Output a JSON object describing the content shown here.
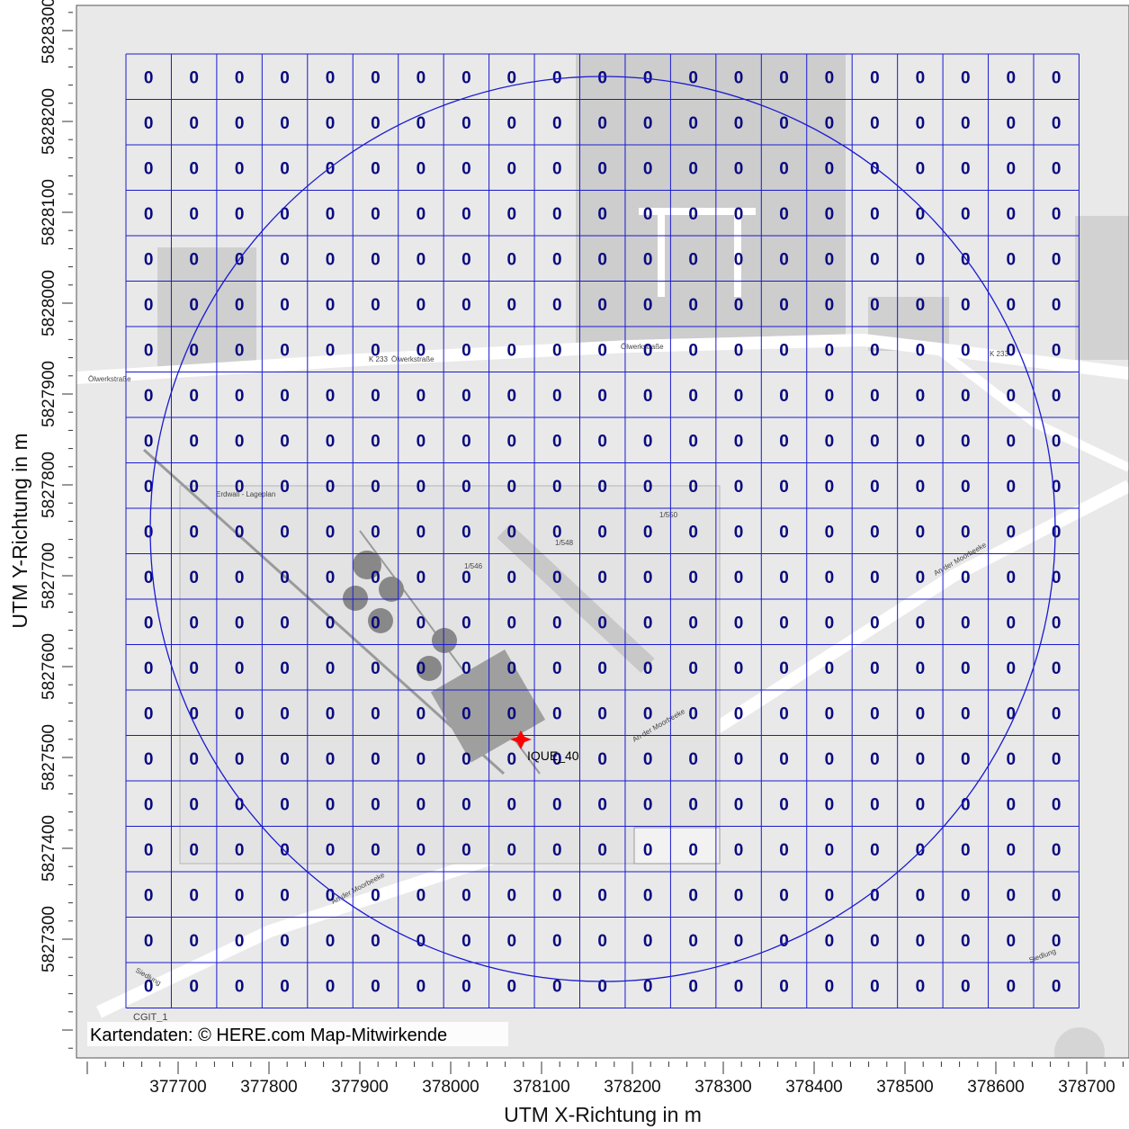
{
  "map": {
    "x_axis_title": "UTM X-Richtung in m",
    "y_axis_title": "UTM Y-Richtung in m",
    "x_ticks": [
      "377700",
      "377800",
      "377900",
      "378000",
      "378100",
      "378200",
      "378300",
      "378400",
      "378500",
      "378600",
      "378700"
    ],
    "y_ticks": [
      "5828300",
      "5828200",
      "5828100",
      "5828000",
      "5827900",
      "5827800",
      "5827700",
      "5827600",
      "5827500",
      "5827400",
      "5827300"
    ],
    "credit": "Kartendaten: © HERE.com Map-Mitwirkende",
    "source_label": "IQUE_40",
    "corner_label": "CGIT_1",
    "road_labels": [
      "Ölwerkstraße",
      "K 233",
      "Ölwerkstraße",
      "Ölwerkstraße",
      "K 233",
      "An der Moorbeeke",
      "An der Moorbeeke",
      "An der Moorbeeke",
      "Siedlung",
      "Siedlung",
      "1/546",
      "1/548",
      "1/550",
      "Erdwall - Lageplan"
    ],
    "grid": {
      "rows": 21,
      "cols": 21,
      "values": [
        [
          0,
          0,
          0,
          0,
          0,
          0,
          0,
          0,
          0,
          0,
          0,
          0,
          0,
          0,
          0,
          0,
          0,
          0,
          0,
          0,
          0
        ],
        [
          0,
          0,
          0,
          0,
          0,
          0,
          0,
          0,
          0,
          0,
          0,
          0,
          0,
          0,
          0,
          0,
          0,
          0,
          0,
          0,
          0
        ],
        [
          0,
          0,
          0,
          0,
          0,
          0,
          0,
          0,
          0,
          0,
          0,
          0,
          0,
          0,
          0,
          0,
          0,
          0,
          0,
          0,
          0
        ],
        [
          0,
          0,
          0,
          0,
          0,
          0,
          0,
          0,
          0,
          0,
          0,
          0,
          0,
          0,
          0,
          0,
          0,
          0,
          0,
          0,
          0
        ],
        [
          0,
          0,
          0,
          0,
          0,
          0,
          0,
          0,
          0,
          0,
          0,
          0,
          0,
          0,
          0,
          0,
          0,
          0,
          0,
          0,
          0
        ],
        [
          0,
          0,
          0,
          0,
          0,
          0,
          0,
          0,
          0,
          0,
          0,
          0,
          0,
          0,
          0,
          0,
          0,
          0,
          0,
          0,
          0
        ],
        [
          0,
          0,
          0,
          0,
          0,
          0,
          0,
          0,
          0,
          0,
          0,
          0,
          0,
          0,
          0,
          0,
          0,
          0,
          0,
          0,
          0
        ],
        [
          0,
          0,
          0,
          0,
          0,
          0,
          0,
          0,
          0,
          0,
          0,
          0,
          0,
          0,
          0,
          0,
          0,
          0,
          0,
          0,
          0
        ],
        [
          0,
          0,
          0,
          0,
          0,
          0,
          0,
          0,
          0,
          0,
          0,
          0,
          0,
          0,
          0,
          0,
          0,
          0,
          0,
          0,
          0
        ],
        [
          0,
          0,
          0,
          0,
          0,
          0,
          0,
          0,
          0,
          0,
          0,
          0,
          0,
          0,
          0,
          0,
          0,
          0,
          0,
          0,
          0
        ],
        [
          0,
          0,
          0,
          0,
          0,
          0,
          0,
          0,
          0,
          0,
          0,
          0,
          0,
          0,
          0,
          0,
          0,
          0,
          0,
          0,
          0
        ],
        [
          0,
          0,
          0,
          0,
          0,
          0,
          0,
          0,
          0,
          0,
          0,
          0,
          0,
          0,
          0,
          0,
          0,
          0,
          0,
          0,
          0
        ],
        [
          0,
          0,
          0,
          0,
          0,
          0,
          0,
          0,
          0,
          0,
          0,
          0,
          0,
          0,
          0,
          0,
          0,
          0,
          0,
          0,
          0
        ],
        [
          0,
          0,
          0,
          0,
          0,
          0,
          0,
          0,
          0,
          0,
          0,
          0,
          0,
          0,
          0,
          0,
          0,
          0,
          0,
          0,
          0
        ],
        [
          0,
          0,
          0,
          0,
          0,
          0,
          0,
          0,
          0,
          0,
          0,
          0,
          0,
          0,
          0,
          0,
          0,
          0,
          0,
          0,
          0
        ],
        [
          0,
          0,
          0,
          0,
          0,
          0,
          0,
          0,
          0,
          0,
          0,
          0,
          0,
          0,
          0,
          0,
          0,
          0,
          0,
          0,
          0
        ],
        [
          0,
          0,
          0,
          0,
          0,
          0,
          0,
          0,
          0,
          0,
          0,
          0,
          0,
          0,
          0,
          0,
          0,
          0,
          0,
          0,
          0
        ],
        [
          0,
          0,
          0,
          0,
          0,
          0,
          0,
          0,
          0,
          0,
          0,
          0,
          0,
          0,
          0,
          0,
          0,
          0,
          0,
          0,
          0
        ],
        [
          0,
          0,
          0,
          0,
          0,
          0,
          0,
          0,
          0,
          0,
          0,
          0,
          0,
          0,
          0,
          0,
          0,
          0,
          0,
          0,
          0
        ],
        [
          0,
          0,
          0,
          0,
          0,
          0,
          0,
          0,
          0,
          0,
          0,
          0,
          0,
          0,
          0,
          0,
          0,
          0,
          0,
          0,
          0
        ],
        [
          0,
          0,
          0,
          0,
          0,
          0,
          0,
          0,
          0,
          0,
          0,
          0,
          0,
          0,
          0,
          0,
          0,
          0,
          0,
          0,
          0
        ]
      ]
    },
    "colors": {
      "grid": "#1a1ad0",
      "values": "#0a0a80",
      "source": "#ff0000"
    }
  }
}
